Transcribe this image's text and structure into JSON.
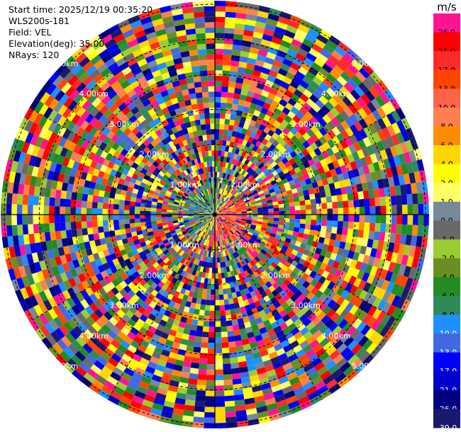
{
  "info": {
    "start_time": "Start time: 2025/12/19 00:35:20",
    "instrument": "WLS200s-181",
    "field": "Field: VEL",
    "elevation": "Elevation(deg): 35.00",
    "nrays": "NRays: 120"
  },
  "range_rings": {
    "labels": [
      "1.00km",
      "2.00km",
      "3.00km",
      "4.00km",
      "5.00km"
    ]
  },
  "colorbar": {
    "unit": "m/s",
    "ticks": [
      "26.0",
      "21.0",
      "17.0",
      "13.0",
      "10.0",
      "8.0",
      "6.0",
      "4.0",
      "2.0",
      "1.0",
      "0.0",
      "-1.0",
      "-2.0",
      "-4.0",
      "-6.0",
      "-8.0",
      "-10.0",
      "-13.0",
      "-17.0",
      "-21.0",
      "-26.0",
      "-30.0"
    ],
    "colors": [
      "#ff1493",
      "#ff0000",
      "#ff2a2a",
      "#ff4500",
      "#ff6347",
      "#ff7f50",
      "#ff8c00",
      "#ffd700",
      "#ffff00",
      "#ffff66",
      "#778899",
      "#696969",
      "#9acd32",
      "#6b8e23",
      "#228b22",
      "#2e8b57",
      "#1e90ff",
      "#4169e1",
      "#0000ff",
      "#0000cd",
      "#000080",
      "#191970"
    ]
  }
}
